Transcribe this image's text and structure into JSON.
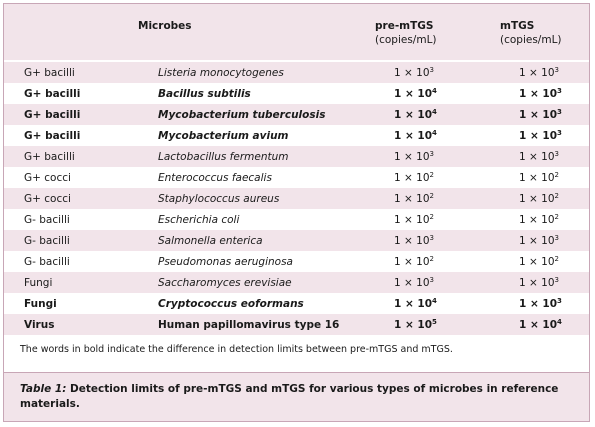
{
  "headers": {
    "type": "",
    "microbes": "Microbes",
    "pre_title": "pre-mTGS",
    "pre_unit": "(copies/mL)",
    "mtgs_title": "mTGS",
    "mtgs_unit": "(copies/mL)"
  },
  "rows": [
    {
      "type": "G+ bacilli",
      "microbe": "Listeria monocytogenes",
      "pre_base": "1 × 10",
      "pre_exp": "3",
      "mtgs_base": "1 × 10",
      "mtgs_exp": "3",
      "bold": false
    },
    {
      "type": "G+ bacilli",
      "microbe": "Bacillus subtilis",
      "pre_base": "1 × 10",
      "pre_exp": "4",
      "mtgs_base": "1 × 10",
      "mtgs_exp": "3",
      "bold": true
    },
    {
      "type": "G+ bacilli",
      "microbe": "Mycobacterium tuberculosis",
      "pre_base": "1 × 10",
      "pre_exp": "4",
      "mtgs_base": "1 × 10",
      "mtgs_exp": "3",
      "bold": true
    },
    {
      "type": "G+ bacilli",
      "microbe": "Mycobacterium avium",
      "pre_base": "1 × 10",
      "pre_exp": "4",
      "mtgs_base": "1 × 10",
      "mtgs_exp": "3",
      "bold": true
    },
    {
      "type": "G+ bacilli",
      "microbe": "Lactobacillus fermentum",
      "pre_base": "1 × 10",
      "pre_exp": "3",
      "mtgs_base": "1 × 10",
      "mtgs_exp": "3",
      "bold": false
    },
    {
      "type": "G+ cocci",
      "microbe": "Enterococcus faecalis",
      "pre_base": "1 × 10",
      "pre_exp": "2",
      "mtgs_base": "1 × 10",
      "mtgs_exp": "2",
      "bold": false
    },
    {
      "type": "G+ cocci",
      "microbe": "Staphylococcus aureus",
      "pre_base": "1 × 10",
      "pre_exp": "2",
      "mtgs_base": "1 × 10",
      "mtgs_exp": "2",
      "bold": false
    },
    {
      "type": "G- bacilli",
      "microbe": "Escherichia coli",
      "pre_base": "1 × 10",
      "pre_exp": "2",
      "mtgs_base": "1 × 10",
      "mtgs_exp": "2",
      "bold": false
    },
    {
      "type": "G- bacilli",
      "microbe": "Salmonella enterica",
      "pre_base": "1 × 10",
      "pre_exp": "3",
      "mtgs_base": "1 × 10",
      "mtgs_exp": "3",
      "bold": false
    },
    {
      "type": "G- bacilli",
      "microbe": "Pseudomonas aeruginosa",
      "pre_base": "1 × 10",
      "pre_exp": "2",
      "mtgs_base": "1 × 10",
      "mtgs_exp": "2",
      "bold": false
    },
    {
      "type": "Fungi",
      "microbe": "Saccharomyces erevisiae",
      "pre_base": "1 × 10",
      "pre_exp": "3",
      "mtgs_base": "1 × 10",
      "mtgs_exp": "3",
      "bold": false
    },
    {
      "type": "Fungi",
      "microbe": "Cryptococcus eoformans",
      "pre_base": "1 × 10",
      "pre_exp": "4",
      "mtgs_base": "1 × 10",
      "mtgs_exp": "3",
      "bold": true
    },
    {
      "type": "Virus",
      "microbe": "Human papillomavirus type 16",
      "pre_base": "1 × 10",
      "pre_exp": "5",
      "mtgs_base": "1 × 10",
      "mtgs_exp": "4",
      "bold": true,
      "upright": true
    }
  ],
  "footnote": "The words in bold indicate the difference in detection limits between pre-mTGS and mTGS.",
  "caption": {
    "label": "Table 1:",
    "text": " Detection limits of pre-mTGS and mTGS for various types of microbes in reference materials."
  }
}
